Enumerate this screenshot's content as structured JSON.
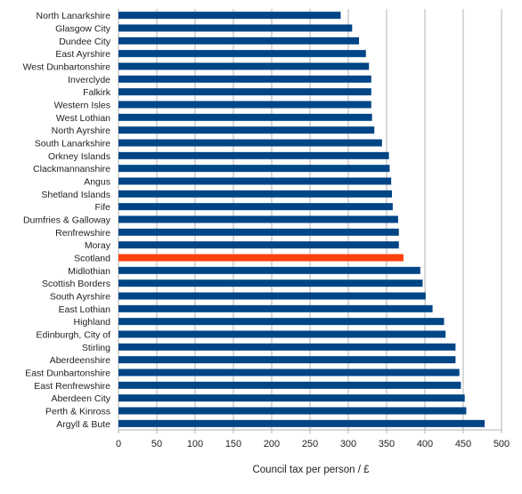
{
  "chart_data": {
    "type": "bar",
    "orientation": "horizontal",
    "categories": [
      "North Lanarkshire",
      "Glasgow City",
      "Dundee City",
      "East Ayrshire",
      "West Dunbartonshire",
      "Inverclyde",
      "Falkirk",
      "Western Isles",
      "West Lothian",
      "North Ayrshire",
      "South Lanarkshire",
      "Orkney Islands",
      "Clackmannanshire",
      "Angus",
      "Shetland Islands",
      "Fife",
      "Dumfries & Galloway",
      "Renfrewshire",
      "Moray",
      "Scotland",
      "Midlothian",
      "Scottish Borders",
      "South Ayrshire",
      "East Lothian",
      "Highland",
      "Edinburgh, City of",
      "Stirling",
      "Aberdeenshire",
      "East Dunbartonshire",
      "East Renfrewshire",
      "Aberdeen City",
      "Perth & Kinross",
      "Argyll & Bute"
    ],
    "values": [
      290,
      305,
      314,
      323,
      327,
      330,
      330,
      330,
      331,
      334,
      344,
      353,
      354,
      356,
      357,
      358,
      365,
      366,
      366,
      372,
      394,
      397,
      401,
      410,
      425,
      427,
      440,
      440,
      445,
      447,
      452,
      454,
      478
    ],
    "highlight_category": "Scotland",
    "xlabel": "Council tax per person / £",
    "ylabel": "",
    "title": "",
    "xlim": [
      0,
      500
    ],
    "x_ticks": [
      "0",
      "50",
      "100",
      "150",
      "200",
      "250",
      "300",
      "350",
      "400",
      "450",
      "500"
    ],
    "grid": true,
    "legend": "none",
    "colors": {
      "bar": "#004586",
      "highlight": "#ff420e"
    }
  }
}
